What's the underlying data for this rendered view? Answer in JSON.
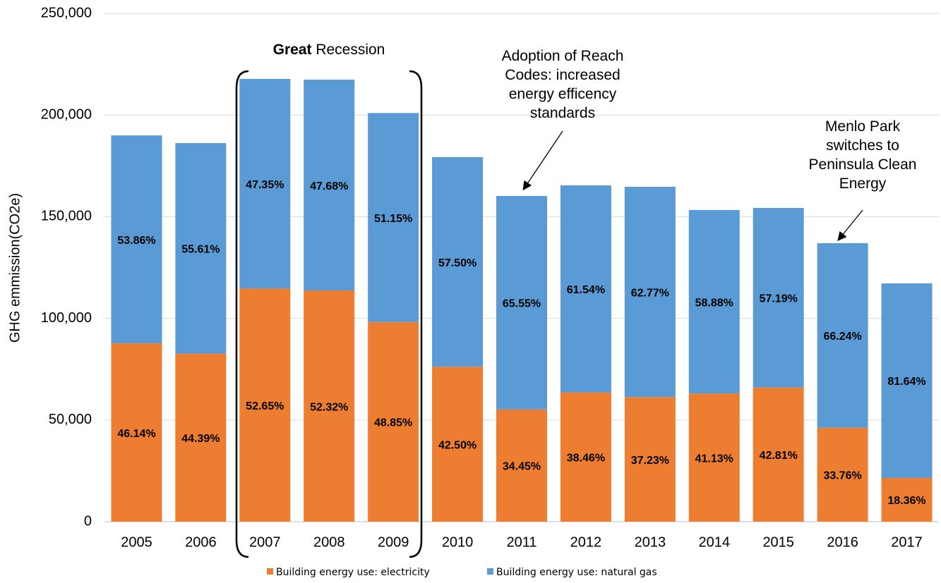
{
  "chart_data": {
    "type": "stacked_bar",
    "y_label": "GHG emmission(CO2e)",
    "categories": [
      "2005",
      "2006",
      "2007",
      "2008",
      "2009",
      "2010",
      "2011",
      "2012",
      "2013",
      "2014",
      "2015",
      "2016",
      "2017"
    ],
    "series": [
      {
        "name": "Building energy use: electricity",
        "color": "#ED7D31",
        "values": [
          87700,
          82650,
          114700,
          113700,
          98200,
          76200,
          55200,
          63600,
          61300,
          63000,
          66000,
          46200,
          21500
        ],
        "share_labels": [
          "46.14%",
          "44.39%",
          "52.65%",
          "52.32%",
          "48.85%",
          "42.50%",
          "34.45%",
          "38.46%",
          "37.23%",
          "41.13%",
          "42.81%",
          "33.76%",
          "18.36%"
        ]
      },
      {
        "name": "Building energy use: natural gas",
        "color": "#5B9BD5",
        "values": [
          102300,
          103550,
          103100,
          103700,
          102800,
          103100,
          105000,
          101800,
          103400,
          90300,
          88300,
          90800,
          95700
        ],
        "share_labels": [
          "53.86%",
          "55.61%",
          "47.35%",
          "47.68%",
          "51.15%",
          "57.50%",
          "65.55%",
          "61.54%",
          "62.77%",
          "58.88%",
          "57.19%",
          "66.24%",
          "81.64%"
        ]
      }
    ],
    "ylim": [
      0,
      250000
    ],
    "yticks": [
      0,
      {
        "value": 50000,
        "label": "50,000"
      },
      {
        "value": 100000,
        "label": "100,000"
      },
      {
        "value": 150000,
        "label": "150,000"
      },
      {
        "value": 200000,
        "label": "200,000"
      },
      {
        "value": 250000,
        "label": "250,000"
      }
    ],
    "grid": true,
    "legend": "bottom",
    "annotations": [
      {
        "parts": [
          "Great",
          "Recession"
        ]
      },
      {
        "lines": [
          "Adoption of Reach",
          "Codes: increased",
          "energy efficency",
          "standards"
        ]
      },
      {
        "lines": [
          "Menlo Park",
          "switches to",
          "Peninsula Clean",
          "Energy"
        ]
      }
    ]
  }
}
